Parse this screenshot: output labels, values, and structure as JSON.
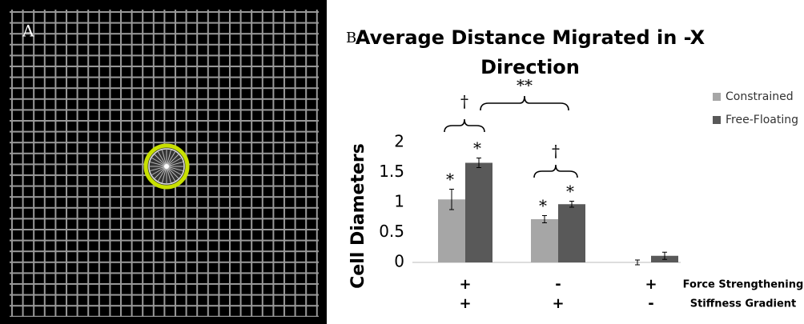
{
  "panel_labels": [
    "A",
    "B"
  ],
  "chart_data": {
    "type": "bar",
    "title": [
      "Average Distance Migrated in -X",
      "Direction"
    ],
    "y_label": "Cell Diameters",
    "ylim": [
      0,
      2
    ],
    "yticks": [
      0,
      0.5,
      1,
      1.5,
      2
    ],
    "grid": false,
    "legend": "upper right",
    "series": [
      {
        "name": "Constrained",
        "color": "#a6a6a6",
        "values": [
          1.05,
          0.72,
          0
        ],
        "errors": [
          0.17,
          0.06,
          0.04
        ],
        "markers": [
          "*",
          "*",
          null
        ]
      },
      {
        "name": "Free-Floating",
        "color": "#595959",
        "values": [
          1.66,
          0.97,
          0.11
        ],
        "errors": [
          0.08,
          0.05,
          0.06
        ],
        "markers": [
          "*",
          "*",
          null
        ]
      }
    ],
    "conditions": [
      {
        "name": "Force Strengthening",
        "values": [
          "+",
          "-",
          "+"
        ]
      },
      {
        "name": "Stiffness Gradient",
        "values": [
          "+",
          "+",
          "-"
        ]
      }
    ],
    "annotations": [
      "†",
      "**",
      "†"
    ]
  }
}
